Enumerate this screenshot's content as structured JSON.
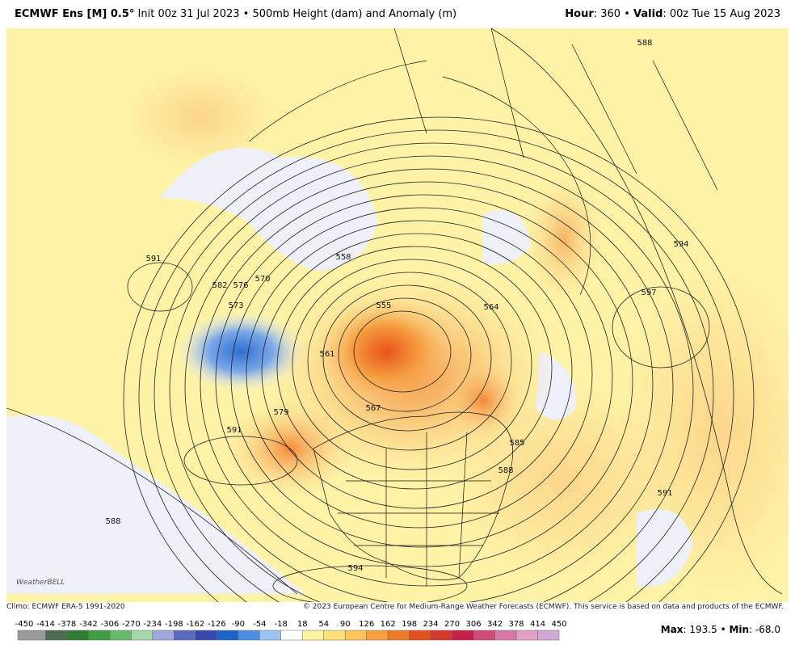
{
  "header": {
    "model": "ECMWF Ens [M] 0.5°",
    "description": "Init 00z 31 Jul 2023 • 500mb Height (dam) and Anomaly (m)",
    "hour_label": "Hour",
    "hour_value": ": 360 •",
    "valid_label": "Valid",
    "valid_value": ": 00z Tue 15 Aug 2023"
  },
  "map": {
    "logo": "WeatherBELL",
    "contour_labels": [
      "588",
      "591",
      "582",
      "576",
      "573",
      "570",
      "558",
      "555",
      "564",
      "597",
      "594",
      "579",
      "591",
      "585",
      "588",
      "591",
      "588",
      "594",
      "561",
      "567"
    ]
  },
  "footer": {
    "climo": "Climo: ECMWF ERA-5 1991-2020",
    "copyright": "© 2023 European Centre for Medium-Range Weather Forecasts (ECMWF). This service is based on data and products of the ECMWF."
  },
  "colorbar": {
    "ticks": [
      -450,
      -414,
      -378,
      -342,
      -306,
      -270,
      -234,
      -198,
      -162,
      -126,
      -90,
      -54,
      -18,
      18,
      54,
      90,
      126,
      162,
      198,
      234,
      270,
      306,
      342,
      378,
      414,
      450
    ]
  },
  "stats": {
    "max_label": "Max",
    "max_value": ": 193.5 •",
    "min_label": "Min",
    "min_value": ": -68.0"
  }
}
